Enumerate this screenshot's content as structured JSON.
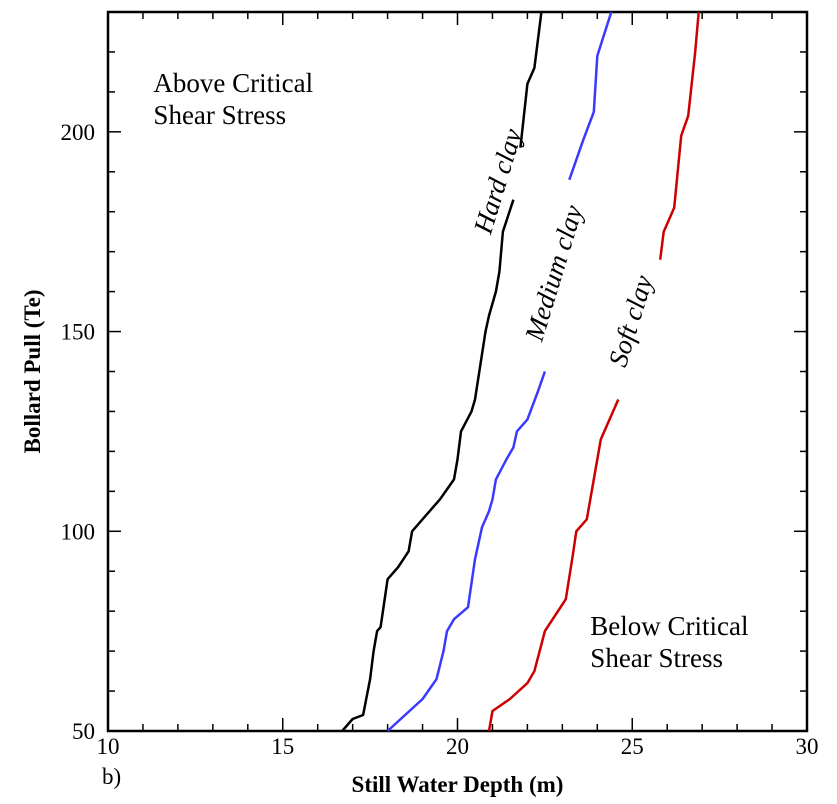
{
  "chart_data": {
    "type": "line",
    "xlabel": "Still Water Depth (m)",
    "ylabel": "Bollard Pull (Te)",
    "xlim": [
      10,
      30
    ],
    "ylim": [
      50,
      230
    ],
    "x_ticks": [
      10,
      15,
      20,
      25,
      30
    ],
    "y_ticks": [
      50,
      100,
      150,
      200
    ],
    "x_minor_step": 1,
    "y_minor_step": 10,
    "grid": false,
    "legend": "none",
    "panel_label": "b)",
    "annotations": [
      {
        "lines": [
          "Above Critical",
          "Shear Stress"
        ],
        "x": 11.3,
        "y": 210
      },
      {
        "lines": [
          "Below Critical",
          "Shear Stress"
        ],
        "x": 23.8,
        "y": 74
      }
    ],
    "series": [
      {
        "name": "Hard clay",
        "color": "#000000",
        "label_pos": {
          "x": 21.4,
          "y": 187,
          "angle": -73
        },
        "points": [
          [
            16.7,
            50
          ],
          [
            17.0,
            53
          ],
          [
            17.3,
            54
          ],
          [
            17.5,
            63
          ],
          [
            17.6,
            70
          ],
          [
            17.7,
            75
          ],
          [
            17.8,
            76
          ],
          [
            18.0,
            88
          ],
          [
            18.3,
            91
          ],
          [
            18.6,
            95
          ],
          [
            18.7,
            100
          ],
          [
            19.1,
            104
          ],
          [
            19.5,
            108
          ],
          [
            19.9,
            113
          ],
          [
            20.0,
            118
          ],
          [
            20.1,
            125
          ],
          [
            20.4,
            130
          ],
          [
            20.5,
            133
          ],
          [
            20.8,
            150
          ],
          [
            20.9,
            154
          ],
          [
            21.1,
            160
          ],
          [
            21.2,
            165
          ],
          [
            21.3,
            175
          ],
          [
            21.6,
            183
          ],
          [
            21.8,
            196
          ],
          [
            22.0,
            212
          ],
          [
            22.2,
            216
          ],
          [
            22.4,
            230
          ]
        ],
        "break": [
          18.4,
          155
        ]
      },
      {
        "name": "Medium clay",
        "color": "#3a3aff",
        "label_pos": {
          "x": 23.0,
          "y": 164,
          "angle": -73
        },
        "points": [
          [
            18.0,
            50
          ],
          [
            18.5,
            54
          ],
          [
            19.0,
            58
          ],
          [
            19.4,
            63
          ],
          [
            19.6,
            70
          ],
          [
            19.7,
            75
          ],
          [
            19.9,
            78
          ],
          [
            20.3,
            81
          ],
          [
            20.5,
            93
          ],
          [
            20.7,
            101
          ],
          [
            20.9,
            105
          ],
          [
            21.0,
            108
          ],
          [
            21.1,
            113
          ],
          [
            21.4,
            118
          ],
          [
            21.6,
            121
          ],
          [
            21.7,
            125
          ],
          [
            22.0,
            128
          ],
          [
            22.3,
            135
          ],
          [
            22.5,
            140
          ],
          [
            23.2,
            188
          ],
          [
            23.6,
            198
          ],
          [
            23.9,
            205
          ],
          [
            24.0,
            219
          ],
          [
            24.4,
            230
          ]
        ],
        "break": [
          22.5,
          188
        ]
      },
      {
        "name": "Soft clay",
        "color": "#cc0000",
        "label_pos": {
          "x": 25.2,
          "y": 152,
          "angle": -73
        },
        "points": [
          [
            20.9,
            50
          ],
          [
            21.0,
            55
          ],
          [
            21.5,
            58
          ],
          [
            22.0,
            62
          ],
          [
            22.2,
            65
          ],
          [
            22.5,
            75
          ],
          [
            23.1,
            83
          ],
          [
            23.3,
            94
          ],
          [
            23.4,
            100
          ],
          [
            23.7,
            103
          ],
          [
            23.9,
            113
          ],
          [
            24.1,
            123
          ],
          [
            24.6,
            133
          ],
          [
            25.8,
            168
          ],
          [
            25.9,
            175
          ],
          [
            26.2,
            181
          ],
          [
            26.4,
            199
          ],
          [
            26.6,
            204
          ],
          [
            26.8,
            220
          ],
          [
            26.9,
            230
          ]
        ],
        "break": [
          24.6,
          168
        ]
      }
    ]
  }
}
